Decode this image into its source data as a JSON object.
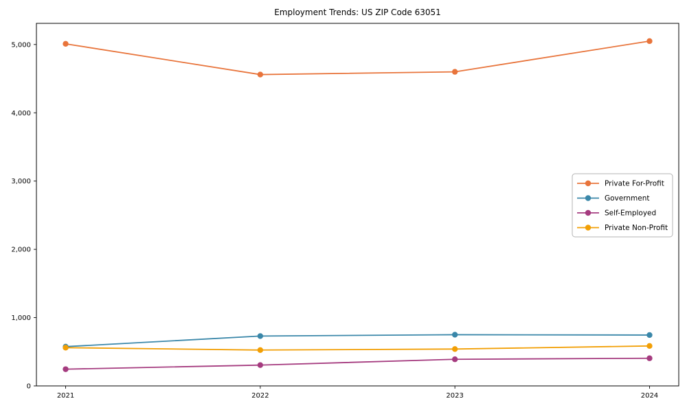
{
  "chart_data": {
    "type": "line",
    "title": "Employment Trends: US ZIP Code 63051",
    "xlabel": "",
    "ylabel": "",
    "x": [
      2021,
      2022,
      2023,
      2024
    ],
    "xtick_labels": [
      "2021",
      "2022",
      "2023",
      "2024"
    ],
    "yticks": [
      0,
      1000,
      2000,
      3000,
      4000,
      5000
    ],
    "ytick_labels": [
      "0",
      "1,000",
      "2,000",
      "3,000",
      "4,000",
      "5,000"
    ],
    "ylim": [
      0,
      5310
    ],
    "grid": false,
    "legend_position": "center right",
    "series": [
      {
        "name": "Private For-Profit",
        "color": "#E8743B",
        "values": [
          5010,
          4560,
          4600,
          5050
        ]
      },
      {
        "name": "Government",
        "color": "#3A87A9",
        "values": [
          575,
          730,
          750,
          745
        ]
      },
      {
        "name": "Self-Employed",
        "color": "#A53B7F",
        "values": [
          245,
          305,
          390,
          405
        ]
      },
      {
        "name": "Private Non-Profit",
        "color": "#F29F05",
        "values": [
          560,
          525,
          540,
          585
        ]
      }
    ],
    "frame_color": "#000000",
    "legend_border_color": "#b3b3b3",
    "background_color": "#ffffff"
  }
}
